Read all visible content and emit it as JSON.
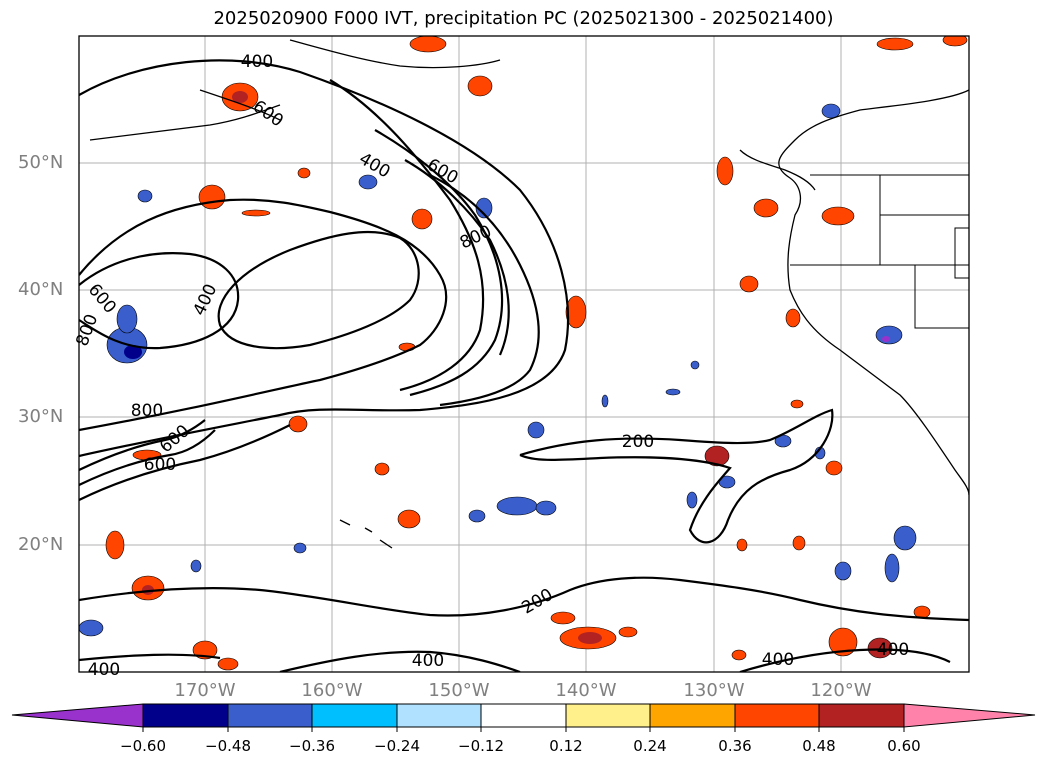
{
  "title": "2025020900 F000 IVT, precipitation PC (2025021300 - 2025021400)",
  "lat_labels": [
    {
      "text": "50°N"
    },
    {
      "text": "40°N"
    },
    {
      "text": "30°N"
    },
    {
      "text": "20°N"
    }
  ],
  "lon_labels": [
    {
      "text": "170°W"
    },
    {
      "text": "160°W"
    },
    {
      "text": "150°W"
    },
    {
      "text": "140°W"
    },
    {
      "text": "130°W"
    },
    {
      "text": "120°W"
    }
  ],
  "contour_labels": [
    {
      "text": "400"
    },
    {
      "text": "600"
    },
    {
      "text": "400"
    },
    {
      "text": "600"
    },
    {
      "text": "800"
    },
    {
      "text": "600"
    },
    {
      "text": "800"
    },
    {
      "text": "400"
    },
    {
      "text": "800"
    },
    {
      "text": "600"
    },
    {
      "text": "600"
    },
    {
      "text": "200"
    },
    {
      "text": "200"
    },
    {
      "text": "400"
    },
    {
      "text": "400"
    },
    {
      "text": "400"
    },
    {
      "text": "400"
    }
  ],
  "colorbar": {
    "colors": [
      "#9932cc",
      "#00008b",
      "#3a5fcd",
      "#00bfff",
      "#b0e2ff",
      "#ffffff",
      "#fff08c",
      "#ffa500",
      "#ff4500",
      "#b22222",
      "#ff82ab"
    ],
    "ticks": [
      "−0.60",
      "−0.48",
      "−0.36",
      "−0.24",
      "−0.12",
      "0.12",
      "0.24",
      "0.36",
      "0.48",
      "0.60"
    ]
  },
  "contour_color": "#000000",
  "grid_color": "#b0b0b0"
}
